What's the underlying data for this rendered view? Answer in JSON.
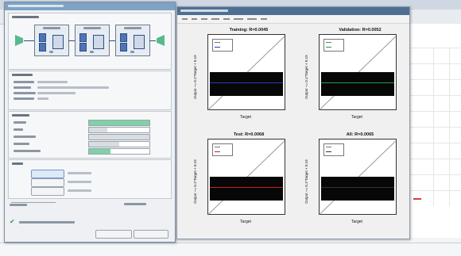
{
  "plot_window": {
    "plots": [
      {
        "title": "Training: R=0.0045",
        "xlabel": "Target",
        "ylabel": "Output ~= 0.1*Target + 0.19",
        "fit_color": "#1f3fbf"
      },
      {
        "title": "Validation: R=0.0052",
        "xlabel": "Target",
        "ylabel": "Output ~= 0.1*Target + 0.19",
        "fit_color": "#1f9f4a"
      },
      {
        "title": "Test: R=0.0068",
        "xlabel": "Target",
        "ylabel": "Output ~= 0.1*Target + 0.19",
        "fit_color": "#c82020"
      },
      {
        "title": "All: R=0.0065",
        "xlabel": "Target",
        "ylabel": "Output ~= 0.1*Target + 0.19",
        "fit_color": "#333333"
      }
    ]
  },
  "nntool": {
    "progress_fractions": [
      1.0,
      0.3,
      1.0,
      0.5,
      0.35
    ],
    "checkbox_checked": true
  },
  "colors": {
    "desktop": "#3f6d95",
    "plot_titlebar": "#4f6f92",
    "progress_fill": "#7fd1a6",
    "io_triangle": "#59b98e",
    "weight_block": "#4e74b6"
  }
}
